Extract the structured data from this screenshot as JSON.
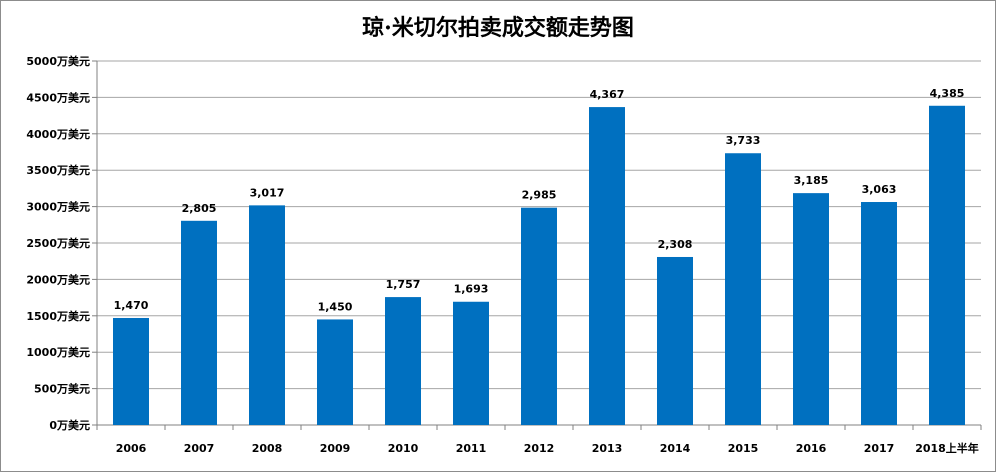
{
  "chart_data": {
    "type": "bar",
    "title": "琼·米切尔拍卖成交额走势图",
    "xlabel": "",
    "ylabel": "",
    "categories": [
      "2006",
      "2007",
      "2008",
      "2009",
      "2010",
      "2011",
      "2012",
      "2013",
      "2014",
      "2015",
      "2016",
      "2017",
      "2018上半年"
    ],
    "values": [
      1470,
      2805,
      3017,
      1450,
      1757,
      1693,
      2985,
      4367,
      2308,
      3733,
      3185,
      3063,
      4385
    ],
    "data_labels": [
      "1,470",
      "2,805",
      "3,017",
      "1,450",
      "1,757",
      "1,693",
      "2,985",
      "4,367",
      "2,308",
      "3,733",
      "3,185",
      "3,063",
      "4,385"
    ],
    "ylim": [
      0,
      5000
    ],
    "y_ticks": [
      0,
      500,
      1000,
      1500,
      2000,
      2500,
      3000,
      3500,
      4000,
      4500,
      5000
    ],
    "y_tick_labels": [
      "0万美元",
      "500万美元",
      "1000万美元",
      "1500万美元",
      "2000万美元",
      "2500万美元",
      "3000万美元",
      "3500万美元",
      "4000万美元",
      "4500万美元",
      "5000万美元"
    ],
    "grid": true,
    "legend": "none",
    "bar_color": "#0070c0",
    "grid_color": "#a6a6a6"
  }
}
